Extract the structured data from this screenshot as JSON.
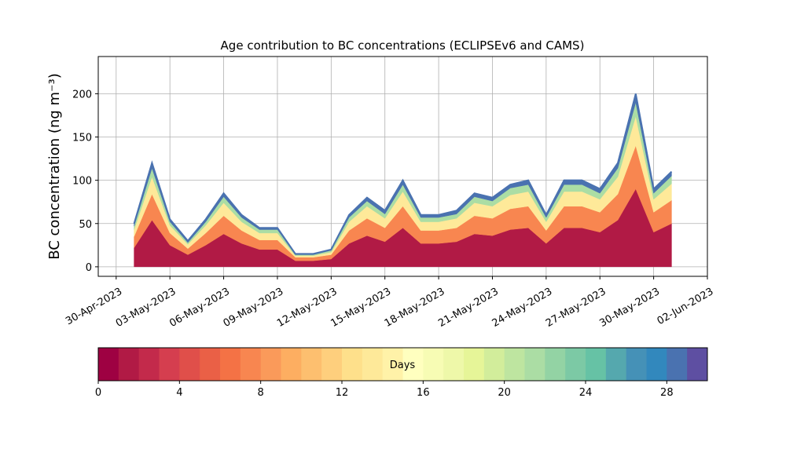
{
  "chart_data": {
    "type": "stacked_area",
    "title": "Age contribution to BC concentrations (ECLIPSEv6 and CAMS)",
    "y_label": "BC concentration (ng m⁻³)",
    "x": [
      "2023-05-01",
      "2023-05-02",
      "2023-05-03",
      "2023-05-04",
      "2023-05-05",
      "2023-05-06",
      "2023-05-07",
      "2023-05-08",
      "2023-05-09",
      "2023-05-10",
      "2023-05-11",
      "2023-05-12",
      "2023-05-13",
      "2023-05-14",
      "2023-05-15",
      "2023-05-16",
      "2023-05-17",
      "2023-05-18",
      "2023-05-19",
      "2023-05-20",
      "2023-05-21",
      "2023-05-22",
      "2023-05-23",
      "2023-05-24",
      "2023-05-25",
      "2023-05-26",
      "2023-05-27",
      "2023-05-28",
      "2023-05-29",
      "2023-05-30",
      "2023-05-31"
    ],
    "series": [
      {
        "color": "#b11a45",
        "values": [
          22,
          54,
          25,
          14,
          25,
          38,
          27,
          20,
          20,
          7,
          7,
          9,
          27,
          36,
          29,
          45,
          27,
          27,
          29,
          38,
          36,
          43,
          45,
          27,
          45,
          45,
          40,
          54,
          90,
          40,
          50
        ]
      },
      {
        "color": "#f88650",
        "values": [
          13,
          30,
          14,
          7,
          14,
          21,
          15,
          11,
          11,
          4,
          4,
          5,
          15,
          20,
          16,
          25,
          15,
          15,
          16,
          21,
          20,
          24,
          25,
          15,
          25,
          25,
          23,
          30,
          50,
          23,
          27
        ]
      },
      {
        "color": "#fee999",
        "values": [
          8,
          20,
          9,
          5,
          9,
          15,
          10,
          8,
          8,
          2,
          2,
          3,
          10,
          14,
          11,
          17,
          10,
          10,
          11,
          15,
          14,
          16,
          17,
          10,
          17,
          17,
          15,
          20,
          34,
          15,
          19
        ]
      },
      {
        "color": "#abdda4",
        "values": [
          4,
          10,
          4,
          2,
          4,
          7,
          5,
          4,
          4,
          1,
          1,
          2,
          5,
          6,
          5,
          8,
          5,
          5,
          5,
          7,
          6,
          8,
          8,
          5,
          8,
          8,
          7,
          10,
          16,
          7,
          9
        ]
      },
      {
        "color": "#4a72b0",
        "values": [
          3,
          6,
          3,
          2,
          3,
          4,
          3,
          2,
          2,
          1,
          1,
          1,
          3,
          4,
          4,
          5,
          3,
          3,
          4,
          4,
          4,
          4,
          5,
          3,
          5,
          5,
          5,
          6,
          10,
          5,
          5
        ]
      }
    ],
    "xlim": [
      "2023-04-29",
      "2023-06-02"
    ],
    "xticks": [
      {
        "value": "2023-04-30",
        "label": "30-Apr-2023"
      },
      {
        "value": "2023-05-03",
        "label": "03-May-2023"
      },
      {
        "value": "2023-05-06",
        "label": "06-May-2023"
      },
      {
        "value": "2023-05-09",
        "label": "09-May-2023"
      },
      {
        "value": "2023-05-12",
        "label": "12-May-2023"
      },
      {
        "value": "2023-05-15",
        "label": "15-May-2023"
      },
      {
        "value": "2023-05-18",
        "label": "18-May-2023"
      },
      {
        "value": "2023-05-21",
        "label": "21-May-2023"
      },
      {
        "value": "2023-05-24",
        "label": "24-May-2023"
      },
      {
        "value": "2023-05-27",
        "label": "27-May-2023"
      },
      {
        "value": "2023-05-30",
        "label": "30-May-2023"
      },
      {
        "value": "2023-06-02",
        "label": "02-Jun-2023"
      }
    ],
    "ylim": [
      -11,
      243
    ],
    "yticks": [
      0,
      50,
      100,
      150,
      200
    ],
    "grid": true,
    "colorbar": {
      "label": "Days",
      "lim": [
        0,
        30
      ],
      "ticks": [
        0,
        4,
        8,
        12,
        16,
        20,
        24,
        28
      ],
      "colors": [
        "#9e0142",
        "#b11a45",
        "#c32a4b",
        "#d53e4f",
        "#e04f4a",
        "#ea6046",
        "#f47245",
        "#f88650",
        "#fa9a5a",
        "#fdae61",
        "#fdbf6f",
        "#fecf7d",
        "#fee08b",
        "#fee999",
        "#fff2a8",
        "#ffffbf",
        "#f7fcb4",
        "#eef8a9",
        "#e6f598",
        "#d2ed9b",
        "#bee5a0",
        "#abdda4",
        "#93d3a4",
        "#7cc9a5",
        "#66c2a5",
        "#55a8ae",
        "#4591b7",
        "#3288bd",
        "#4a72b0",
        "#5e4fa2"
      ]
    }
  }
}
